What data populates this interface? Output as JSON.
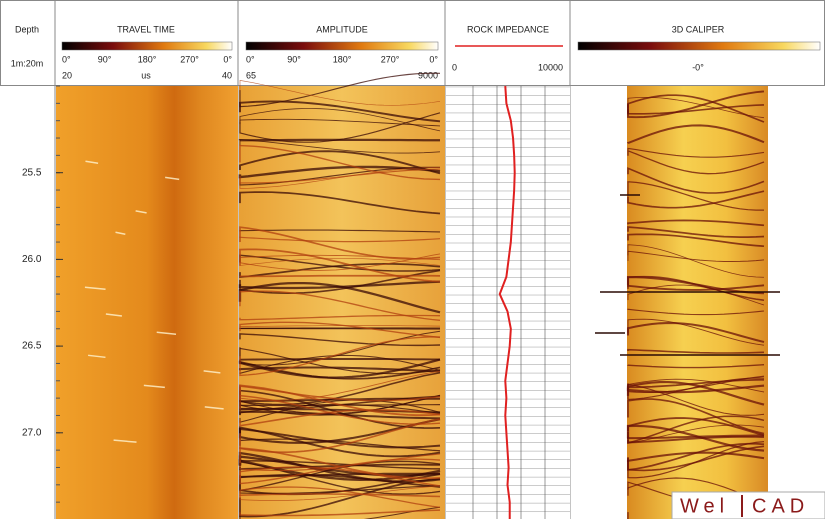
{
  "depth_track": {
    "title": "Depth",
    "scale": "1m:20m",
    "range": [
      25.0,
      27.5
    ],
    "ticks": [
      {
        "value": 25.5,
        "label": "25.5"
      },
      {
        "value": 26.0,
        "label": "26.0"
      },
      {
        "value": 26.5,
        "label": "26.5"
      },
      {
        "value": 27.0,
        "label": "27.0"
      }
    ]
  },
  "travel_time": {
    "title": "TRAVEL TIME",
    "palette_labels": [
      "0°",
      "90°",
      "180°",
      "270°",
      "0°"
    ],
    "min": "20",
    "unit": "us",
    "max": "40"
  },
  "amplitude": {
    "title": "AMPLITUDE",
    "palette_labels": [
      "0°",
      "90°",
      "180°",
      "270°",
      "0°"
    ],
    "min": "65",
    "max": "9000"
  },
  "rock_impedance": {
    "title": "ROCK IMPEDANCE",
    "color": "#e02020",
    "xlim": [
      0,
      10000
    ],
    "xticks": [
      0,
      10000
    ],
    "depth": [
      25.0,
      25.1,
      25.2,
      25.3,
      25.4,
      25.5,
      25.6,
      25.7,
      25.8,
      25.9,
      26.0,
      26.1,
      26.2,
      26.3,
      26.4,
      26.5,
      26.6,
      26.7,
      26.8,
      26.9,
      27.0,
      27.1,
      27.2,
      27.3,
      27.4,
      27.5
    ],
    "values": [
      4800,
      4900,
      5300,
      5500,
      5600,
      5650,
      5600,
      5500,
      5400,
      5300,
      5100,
      4900,
      4300,
      5000,
      5300,
      5200,
      5000,
      4800,
      4900,
      4800,
      4900,
      5000,
      5100,
      5000,
      5200,
      5200
    ]
  },
  "caliper": {
    "title": "3D CALIPER",
    "palette_labels": [
      "-0°"
    ]
  },
  "watermark": [
    "Wel",
    "CAD"
  ]
}
